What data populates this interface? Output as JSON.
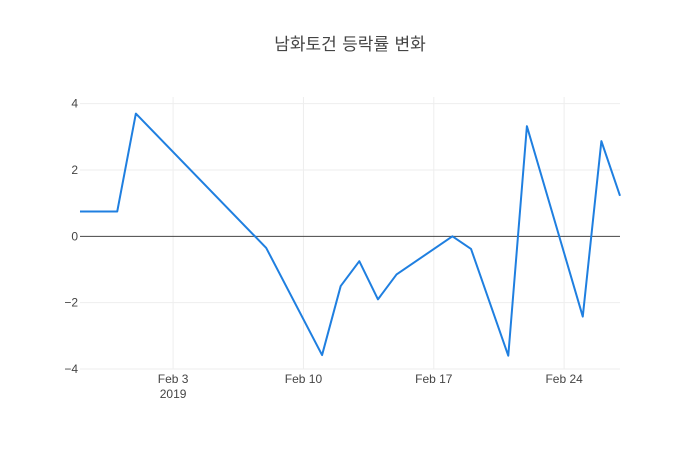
{
  "chart_data": {
    "type": "line",
    "title": "남화토건 등락률 변화",
    "xlabel": "",
    "ylabel": "",
    "x_range": [
      "2019-01-29",
      "2019-02-27"
    ],
    "ylim": [
      -4,
      4.2
    ],
    "grid": true,
    "zero_line": true,
    "x_ticks": [
      {
        "date": "2019-02-03",
        "label": "Feb 3",
        "sublabel": "2019"
      },
      {
        "date": "2019-02-10",
        "label": "Feb 10",
        "sublabel": ""
      },
      {
        "date": "2019-02-17",
        "label": "Feb 17",
        "sublabel": ""
      },
      {
        "date": "2019-02-24",
        "label": "Feb 24",
        "sublabel": ""
      }
    ],
    "y_ticks": [
      {
        "value": 4,
        "label": "4"
      },
      {
        "value": 2,
        "label": "2"
      },
      {
        "value": 0,
        "label": "0"
      },
      {
        "value": -2,
        "label": "−2"
      },
      {
        "value": -4,
        "label": "−4"
      }
    ],
    "series": [
      {
        "color": "#1f7fe0",
        "x": [
          "2019-01-29",
          "2019-01-31",
          "2019-02-01",
          "2019-02-08",
          "2019-02-11",
          "2019-02-12",
          "2019-02-13",
          "2019-02-14",
          "2019-02-15",
          "2019-02-18",
          "2019-02-19",
          "2019-02-21",
          "2019-02-22",
          "2019-02-25",
          "2019-02-26",
          "2019-02-27"
        ],
        "y": [
          0.75,
          0.75,
          3.7,
          -0.35,
          -3.58,
          -1.5,
          -0.75,
          -1.9,
          -1.15,
          0.0,
          -0.38,
          -3.6,
          3.32,
          -2.42,
          2.87,
          1.22
        ]
      }
    ]
  }
}
